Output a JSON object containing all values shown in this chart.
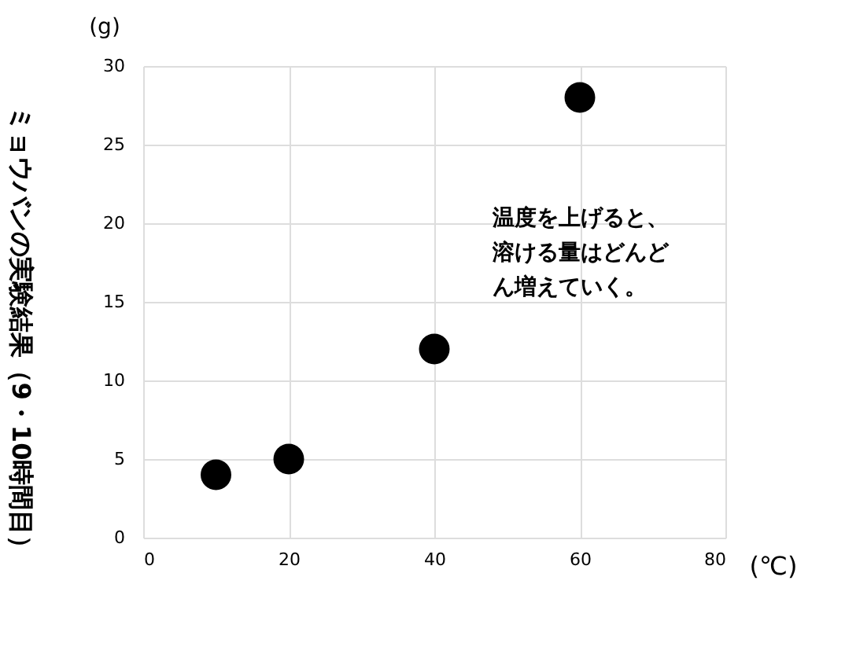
{
  "chart_data": {
    "type": "scatter",
    "title": "ミョウバンの実験結果（9・10時間目）",
    "x": [
      10,
      20,
      40,
      60
    ],
    "values": [
      4,
      5,
      12,
      28
    ],
    "color": "#000000",
    "marker": "circle",
    "xlim": [
      0,
      80
    ],
    "xticks": [
      0,
      20,
      40,
      60,
      80
    ],
    "ylim": [
      0,
      30
    ],
    "yticks": [
      0,
      5,
      10,
      15,
      20,
      25,
      30
    ],
    "xlabel": "(℃)",
    "ylabel": "(g)",
    "grid": true,
    "annotations": [
      "温度を上げると、溶ける量はどんどん増えていく。"
    ]
  }
}
